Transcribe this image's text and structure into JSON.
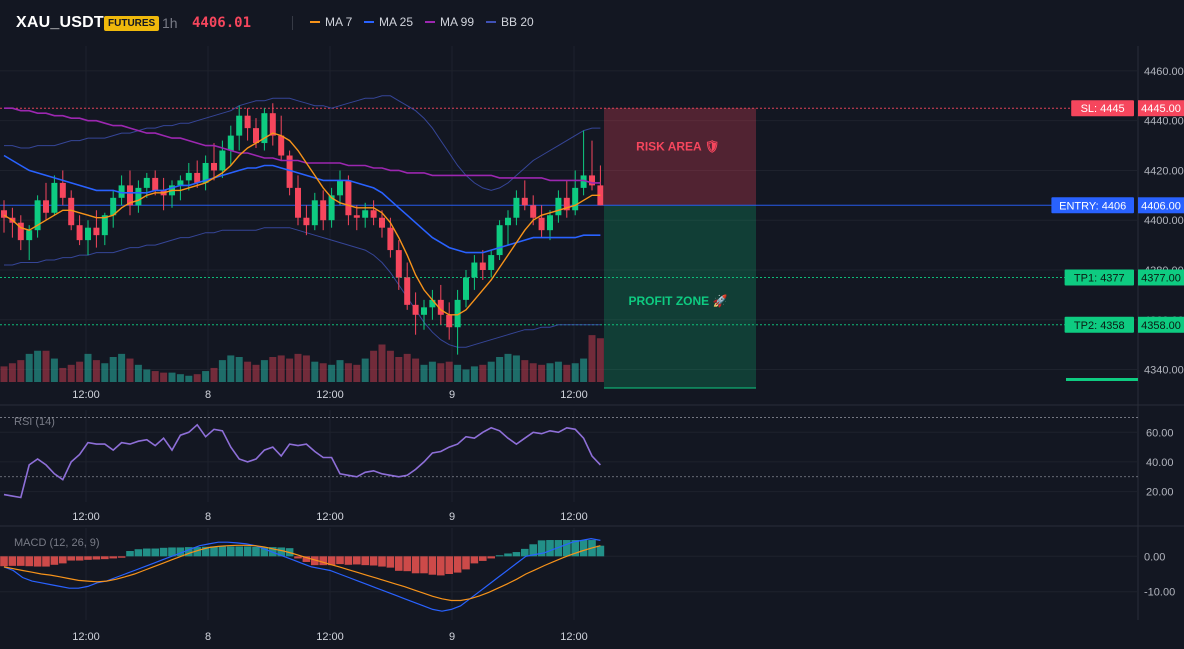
{
  "header": {
    "symbol": "XAU_USDT",
    "badge": "FUTURES",
    "timeframe": "1h",
    "last_price": "4406.01",
    "legend": [
      {
        "label": "MA 7",
        "color": "#f7931a"
      },
      {
        "label": "MA 25",
        "color": "#2962ff"
      },
      {
        "label": "MA 99",
        "color": "#9c27b0"
      },
      {
        "label": "BB 20",
        "color": "#3f51b5"
      }
    ]
  },
  "colors": {
    "up": "#26a69a",
    "upBright": "#0ecb81",
    "down": "#f6465d",
    "bg": "#131722",
    "grid": "#1e222d",
    "text": "#b2b5be"
  },
  "chart_data": [
    {
      "type": "candlestick",
      "title": "XAU_USDT 1h",
      "y_ticks": [
        "4460.00",
        "4440.00",
        "4420.00",
        "4400.00",
        "4380.00",
        "4360.00",
        "4340.00"
      ],
      "x_ticks": [
        "12:00",
        "8",
        "12:00",
        "9",
        "12:00"
      ],
      "ylim": [
        4335,
        4470
      ],
      "candles": [
        [
          4404,
          4408,
          4395,
          4401
        ],
        [
          4401,
          4405,
          4393,
          4399
        ],
        [
          4399,
          4402,
          4388,
          4392
        ],
        [
          4392,
          4398,
          4384,
          4396
        ],
        [
          4396,
          4410,
          4393,
          4408
        ],
        [
          4408,
          4415,
          4400,
          4403
        ],
        [
          4403,
          4418,
          4402,
          4415
        ],
        [
          4415,
          4420,
          4406,
          4409
        ],
        [
          4409,
          4412,
          4396,
          4398
        ],
        [
          4398,
          4402,
          4390,
          4392
        ],
        [
          4392,
          4400,
          4386,
          4397
        ],
        [
          4397,
          4404,
          4389,
          4394
        ],
        [
          4394,
          4403,
          4390,
          4402
        ],
        [
          4402,
          4412,
          4397,
          4409
        ],
        [
          4409,
          4418,
          4406,
          4414
        ],
        [
          4414,
          4420,
          4402,
          4406
        ],
        [
          4406,
          4416,
          4403,
          4413
        ],
        [
          4413,
          4419,
          4409,
          4417
        ],
        [
          4417,
          4420,
          4410,
          4412
        ],
        [
          4412,
          4417,
          4404,
          4410
        ],
        [
          4410,
          4416,
          4405,
          4414
        ],
        [
          4414,
          4418,
          4408,
          4416
        ],
        [
          4416,
          4423,
          4412,
          4419
        ],
        [
          4419,
          4424,
          4413,
          4415
        ],
        [
          4415,
          4426,
          4412,
          4423
        ],
        [
          4423,
          4431,
          4416,
          4420
        ],
        [
          4420,
          4432,
          4417,
          4428
        ],
        [
          4428,
          4438,
          4422,
          4434
        ],
        [
          4434,
          4446,
          4428,
          4442
        ],
        [
          4442,
          4445,
          4432,
          4437
        ],
        [
          4437,
          4441,
          4429,
          4431
        ],
        [
          4431,
          4445,
          4428,
          4443
        ],
        [
          4443,
          4447,
          4430,
          4434
        ],
        [
          4434,
          4442,
          4424,
          4426
        ],
        [
          4426,
          4428,
          4410,
          4413
        ],
        [
          4413,
          4418,
          4398,
          4401
        ],
        [
          4401,
          4406,
          4394,
          4398
        ],
        [
          4398,
          4411,
          4396,
          4408
        ],
        [
          4408,
          4412,
          4396,
          4400
        ],
        [
          4400,
          4413,
          4397,
          4410
        ],
        [
          4410,
          4420,
          4406,
          4416
        ],
        [
          4416,
          4418,
          4398,
          4402
        ],
        [
          4402,
          4406,
          4396,
          4401
        ],
        [
          4401,
          4407,
          4397,
          4404
        ],
        [
          4404,
          4408,
          4398,
          4401
        ],
        [
          4401,
          4404,
          4393,
          4397
        ],
        [
          4397,
          4401,
          4385,
          4388
        ],
        [
          4388,
          4392,
          4372,
          4377
        ],
        [
          4377,
          4383,
          4364,
          4366
        ],
        [
          4366,
          4371,
          4354,
          4362
        ],
        [
          4362,
          4368,
          4356,
          4365
        ],
        [
          4365,
          4372,
          4360,
          4368
        ],
        [
          4368,
          4374,
          4358,
          4362
        ],
        [
          4362,
          4367,
          4352,
          4357
        ],
        [
          4357,
          4372,
          4346,
          4368
        ],
        [
          4368,
          4380,
          4365,
          4377
        ],
        [
          4377,
          4386,
          4372,
          4383
        ],
        [
          4383,
          4388,
          4376,
          4380
        ],
        [
          4380,
          4388,
          4377,
          4386
        ],
        [
          4386,
          4400,
          4384,
          4398
        ],
        [
          4398,
          4404,
          4390,
          4401
        ],
        [
          4401,
          4412,
          4398,
          4409
        ],
        [
          4409,
          4416,
          4404,
          4406
        ],
        [
          4406,
          4410,
          4398,
          4401
        ],
        [
          4401,
          4406,
          4393,
          4396
        ],
        [
          4396,
          4404,
          4392,
          4402
        ],
        [
          4402,
          4412,
          4399,
          4409
        ],
        [
          4409,
          4416,
          4401,
          4404
        ],
        [
          4404,
          4420,
          4402,
          4413
        ],
        [
          4413,
          4436,
          4410,
          4418
        ],
        [
          4418,
          4432,
          4412,
          4414
        ],
        [
          4414,
          4422,
          4406,
          4406
        ]
      ],
      "volume": [
        10,
        12,
        14,
        18,
        20,
        20,
        15,
        9,
        11,
        13,
        18,
        14,
        12,
        16,
        18,
        15,
        11,
        8,
        7,
        6,
        6,
        5,
        4,
        5,
        7,
        9,
        14,
        17,
        16,
        13,
        11,
        14,
        16,
        17,
        15,
        18,
        17,
        13,
        12,
        11,
        14,
        12,
        11,
        15,
        20,
        24,
        20,
        16,
        18,
        15,
        11,
        13,
        12,
        13,
        11,
        8,
        10,
        11,
        13,
        16,
        18,
        17,
        14,
        12,
        11,
        12,
        13,
        11,
        12,
        15,
        30,
        28
      ],
      "ma7": [
        4402,
        4400,
        4397,
        4396,
        4398,
        4400,
        4402,
        4404,
        4404,
        4403,
        4402,
        4401,
        4401,
        4402,
        4405,
        4407,
        4408,
        4410,
        4411,
        4411,
        4412,
        4412,
        4413,
        4414,
        4415,
        4417,
        4419,
        4422,
        4426,
        4429,
        4431,
        4433,
        4435,
        4434,
        4432,
        4428,
        4423,
        4418,
        4413,
        4409,
        4407,
        4406,
        4405,
        4405,
        4405,
        4403,
        4399,
        4393,
        4386,
        4378,
        4372,
        4368,
        4364,
        4362,
        4362,
        4364,
        4368,
        4372,
        4376,
        4381,
        4386,
        4391,
        4396,
        4400,
        4402,
        4403,
        4404,
        4405,
        4406,
        4408,
        4410,
        4410
      ],
      "ma25": [
        4426,
        4424,
        4422,
        4420,
        4419,
        4418,
        4417,
        4416,
        4415,
        4414,
        4413,
        4412,
        4412,
        4412,
        4411,
        4411,
        4411,
        4411,
        4412,
        4412,
        4413,
        4414,
        4414,
        4415,
        4416,
        4417,
        4418,
        4419,
        4420,
        4421,
        4421,
        4422,
        4422,
        4421,
        4420,
        4419,
        4418,
        4417,
        4416,
        4416,
        4416,
        4416,
        4415,
        4414,
        4413,
        4411,
        4408,
        4405,
        4402,
        4399,
        4396,
        4393,
        4391,
        4389,
        4388,
        4387,
        4387,
        4387,
        4388,
        4389,
        4390,
        4391,
        4392,
        4393,
        4393,
        4393,
        4393,
        4393,
        4393,
        4394,
        4394,
        4394
      ],
      "ma99": [
        4445,
        4445,
        4444,
        4444,
        4443,
        4443,
        4442,
        4442,
        4441,
        4441,
        4440,
        4440,
        4439,
        4438,
        4438,
        4437,
        4436,
        4435,
        4435,
        4434,
        4433,
        4433,
        4432,
        4431,
        4430,
        4430,
        4429,
        4428,
        4427,
        4427,
        4426,
        4425,
        4425,
        4424,
        4424,
        4424,
        4423,
        4423,
        4423,
        4423,
        4423,
        4422,
        4422,
        4422,
        4421,
        4421,
        4420,
        4420,
        4419,
        4419,
        4419,
        4418,
        4418,
        4418,
        4418,
        4418,
        4418,
        4418,
        4418,
        4417,
        4417,
        4417,
        4417,
        4417,
        4417,
        4416,
        4416,
        4416,
        4416,
        4416,
        4415,
        4415
      ],
      "bb_upper": [
        4430,
        4430,
        4429,
        4429,
        4430,
        4430,
        4430,
        4431,
        4432,
        4432,
        4433,
        4433,
        4433,
        4434,
        4435,
        4435,
        4436,
        4437,
        4437,
        4438,
        4438,
        4439,
        4439,
        4440,
        4441,
        4442,
        4443,
        4444,
        4446,
        4447,
        4448,
        4448,
        4449,
        4449,
        4449,
        4448,
        4447,
        4446,
        4446,
        4445,
        4446,
        4447,
        4448,
        4449,
        4449,
        4450,
        4450,
        4448,
        4446,
        4444,
        4441,
        4437,
        4432,
        4427,
        4422,
        4418,
        4415,
        4413,
        4412,
        4413,
        4415,
        4418,
        4421,
        4424,
        4426,
        4428,
        4430,
        4432,
        4434,
        4436,
        4437,
        4437
      ],
      "bb_lower": [
        4382,
        4382,
        4383,
        4383,
        4383,
        4384,
        4384,
        4385,
        4385,
        4386,
        4386,
        4387,
        4387,
        4387,
        4388,
        4389,
        4389,
        4390,
        4390,
        4391,
        4392,
        4393,
        4393,
        4394,
        4395,
        4395,
        4396,
        4396,
        4396,
        4396,
        4396,
        4397,
        4397,
        4397,
        4397,
        4396,
        4395,
        4394,
        4393,
        4392,
        4391,
        4390,
        4389,
        4388,
        4386,
        4383,
        4379,
        4374,
        4369,
        4364,
        4359,
        4355,
        4352,
        4350,
        4349,
        4349,
        4350,
        4351,
        4352,
        4353,
        4354,
        4355,
        4356,
        4356,
        4357,
        4357,
        4358,
        4358,
        4358,
        4358,
        4358,
        4358
      ],
      "levels": [
        {
          "label": "SL: 4445",
          "value": "4445.00",
          "price": 4445,
          "color": "#f6465d"
        },
        {
          "label": "ENTRY: 4406",
          "value": "4406.00",
          "price": 4406,
          "color": "#2962ff"
        },
        {
          "label": "TP1: 4377",
          "value": "4377.00",
          "price": 4377,
          "color": "#0ecb81"
        },
        {
          "label": "TP2: 4358",
          "value": "4358.00",
          "price": 4358,
          "color": "#0ecb81"
        }
      ],
      "zones": {
        "risk_label": "RISK AREA 🛡",
        "profit_label": "PROFIT ZONE 🚀"
      }
    },
    {
      "type": "line",
      "title": "RSI (14)",
      "y_ticks": [
        "60.00",
        "40.00",
        "20.00"
      ],
      "ylim": [
        13,
        75
      ],
      "x_ticks": [
        "12:00",
        "8",
        "12:00",
        "9",
        "12:00"
      ],
      "rsi": [
        18,
        17,
        16,
        38,
        42,
        38,
        32,
        28,
        40,
        45,
        53,
        52,
        52,
        48,
        53,
        52,
        54,
        55,
        51,
        56,
        48,
        58,
        60,
        65,
        57,
        62,
        61,
        50,
        42,
        40,
        42,
        48,
        50,
        44,
        52,
        51,
        52,
        47,
        43,
        43,
        32,
        31,
        30,
        33,
        34,
        32,
        31,
        30,
        31,
        35,
        40,
        46,
        47,
        50,
        52,
        57,
        56,
        60,
        63,
        61,
        56,
        52,
        56,
        60,
        59,
        61,
        60,
        63,
        62,
        56,
        44,
        38
      ],
      "levels": [
        70,
        30
      ]
    },
    {
      "type": "bar",
      "title": "MACD (12, 26, 9)",
      "y_ticks": [
        "0.00",
        "-10.00"
      ],
      "ylim": [
        -18,
        8
      ],
      "x_ticks": [
        "12:00",
        "8",
        "12:00",
        "9",
        "12:00"
      ],
      "hist": [
        -2.8,
        -2.7,
        -2.7,
        -2.8,
        -2.9,
        -2.9,
        -2.4,
        -2.0,
        -1.2,
        -1.2,
        -1.0,
        -0.9,
        -0.8,
        -0.6,
        -0.4,
        1.5,
        2.0,
        2.2,
        2.2,
        2.4,
        2.5,
        2.5,
        2.6,
        2.6,
        2.7,
        2.8,
        2.8,
        2.8,
        2.8,
        2.8,
        2.7,
        2.6,
        2.6,
        2.5,
        2.3,
        -0.6,
        -1.6,
        -2.5,
        -2.5,
        -2.5,
        -2.2,
        -2.4,
        -2.3,
        -2.5,
        -2.6,
        -2.9,
        -3.2,
        -4.1,
        -4.2,
        -4.8,
        -4.8,
        -5.2,
        -5.4,
        -5.0,
        -4.6,
        -3.7,
        -2.0,
        -1.3,
        -0.6,
        0.3,
        0.8,
        1.2,
        2.1,
        3.4,
        4.5,
        4.6,
        4.6,
        4.6,
        4.6,
        4.6,
        4.6,
        3.0
      ],
      "macd": [
        -3,
        -4,
        -6,
        -7,
        -7.5,
        -8,
        -8.5,
        -9,
        -9,
        -8.5,
        -7.5,
        -7,
        -6,
        -5,
        -4,
        -3,
        -2,
        -1,
        0,
        1,
        2,
        3,
        3.5,
        4,
        4,
        3.8,
        3.5,
        3,
        2,
        1,
        0,
        -1,
        -2,
        -3,
        -3.5,
        -4,
        -5,
        -6,
        -7,
        -8,
        -9,
        -10,
        -11,
        -12,
        -13,
        -14,
        -15,
        -15.5,
        -15,
        -14,
        -12,
        -10,
        -8,
        -6,
        -4,
        -2,
        0,
        0.5,
        1,
        2,
        3,
        4,
        4.5,
        5,
        4.5
      ],
      "signal": [
        -3,
        -3.5,
        -4,
        -4.5,
        -5,
        -5.3,
        -5.8,
        -6.3,
        -6.8,
        -7.0,
        -7.2,
        -7.0,
        -6.5,
        -5.8,
        -5.0,
        -4.0,
        -3.0,
        -2.0,
        -1.0,
        0,
        1,
        1.8,
        2.5,
        2.8,
        3,
        3.1,
        3.1,
        3,
        2.6,
        2,
        1.5,
        0.8,
        0,
        -0.8,
        -1.5,
        -2.3,
        -3,
        -3.8,
        -4.6,
        -5.4,
        -6.2,
        -7,
        -7.8,
        -8.6,
        -9.5,
        -10.4,
        -11.3,
        -12,
        -12.5,
        -12.5,
        -12,
        -11.2,
        -10.2,
        -9,
        -7.8,
        -6.5,
        -5,
        -3.8,
        -2.6,
        -1.5,
        -0.4,
        0.6,
        1.5,
        2.3,
        3
      ]
    }
  ]
}
